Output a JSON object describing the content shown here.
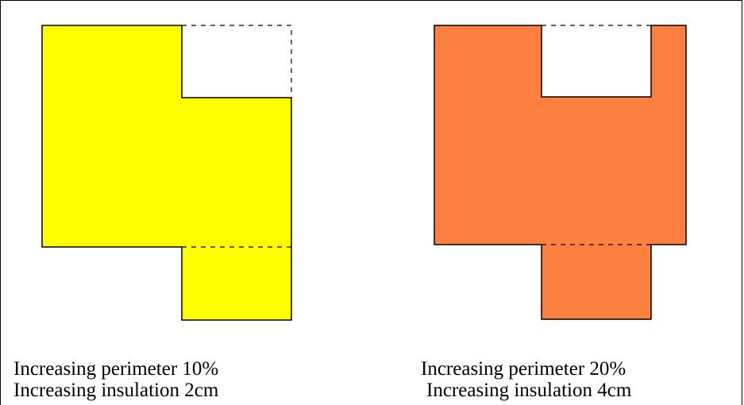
{
  "left_panel": {
    "fill_color": "#ffff00",
    "caption_line1": "Increasing perimeter 10%",
    "caption_line2": "Increasing insulation 2cm"
  },
  "right_panel": {
    "fill_color": "#fd8040",
    "caption_line1": "Increasing perimeter 20%",
    "caption_line2": "Increasing insulation 4cm"
  }
}
